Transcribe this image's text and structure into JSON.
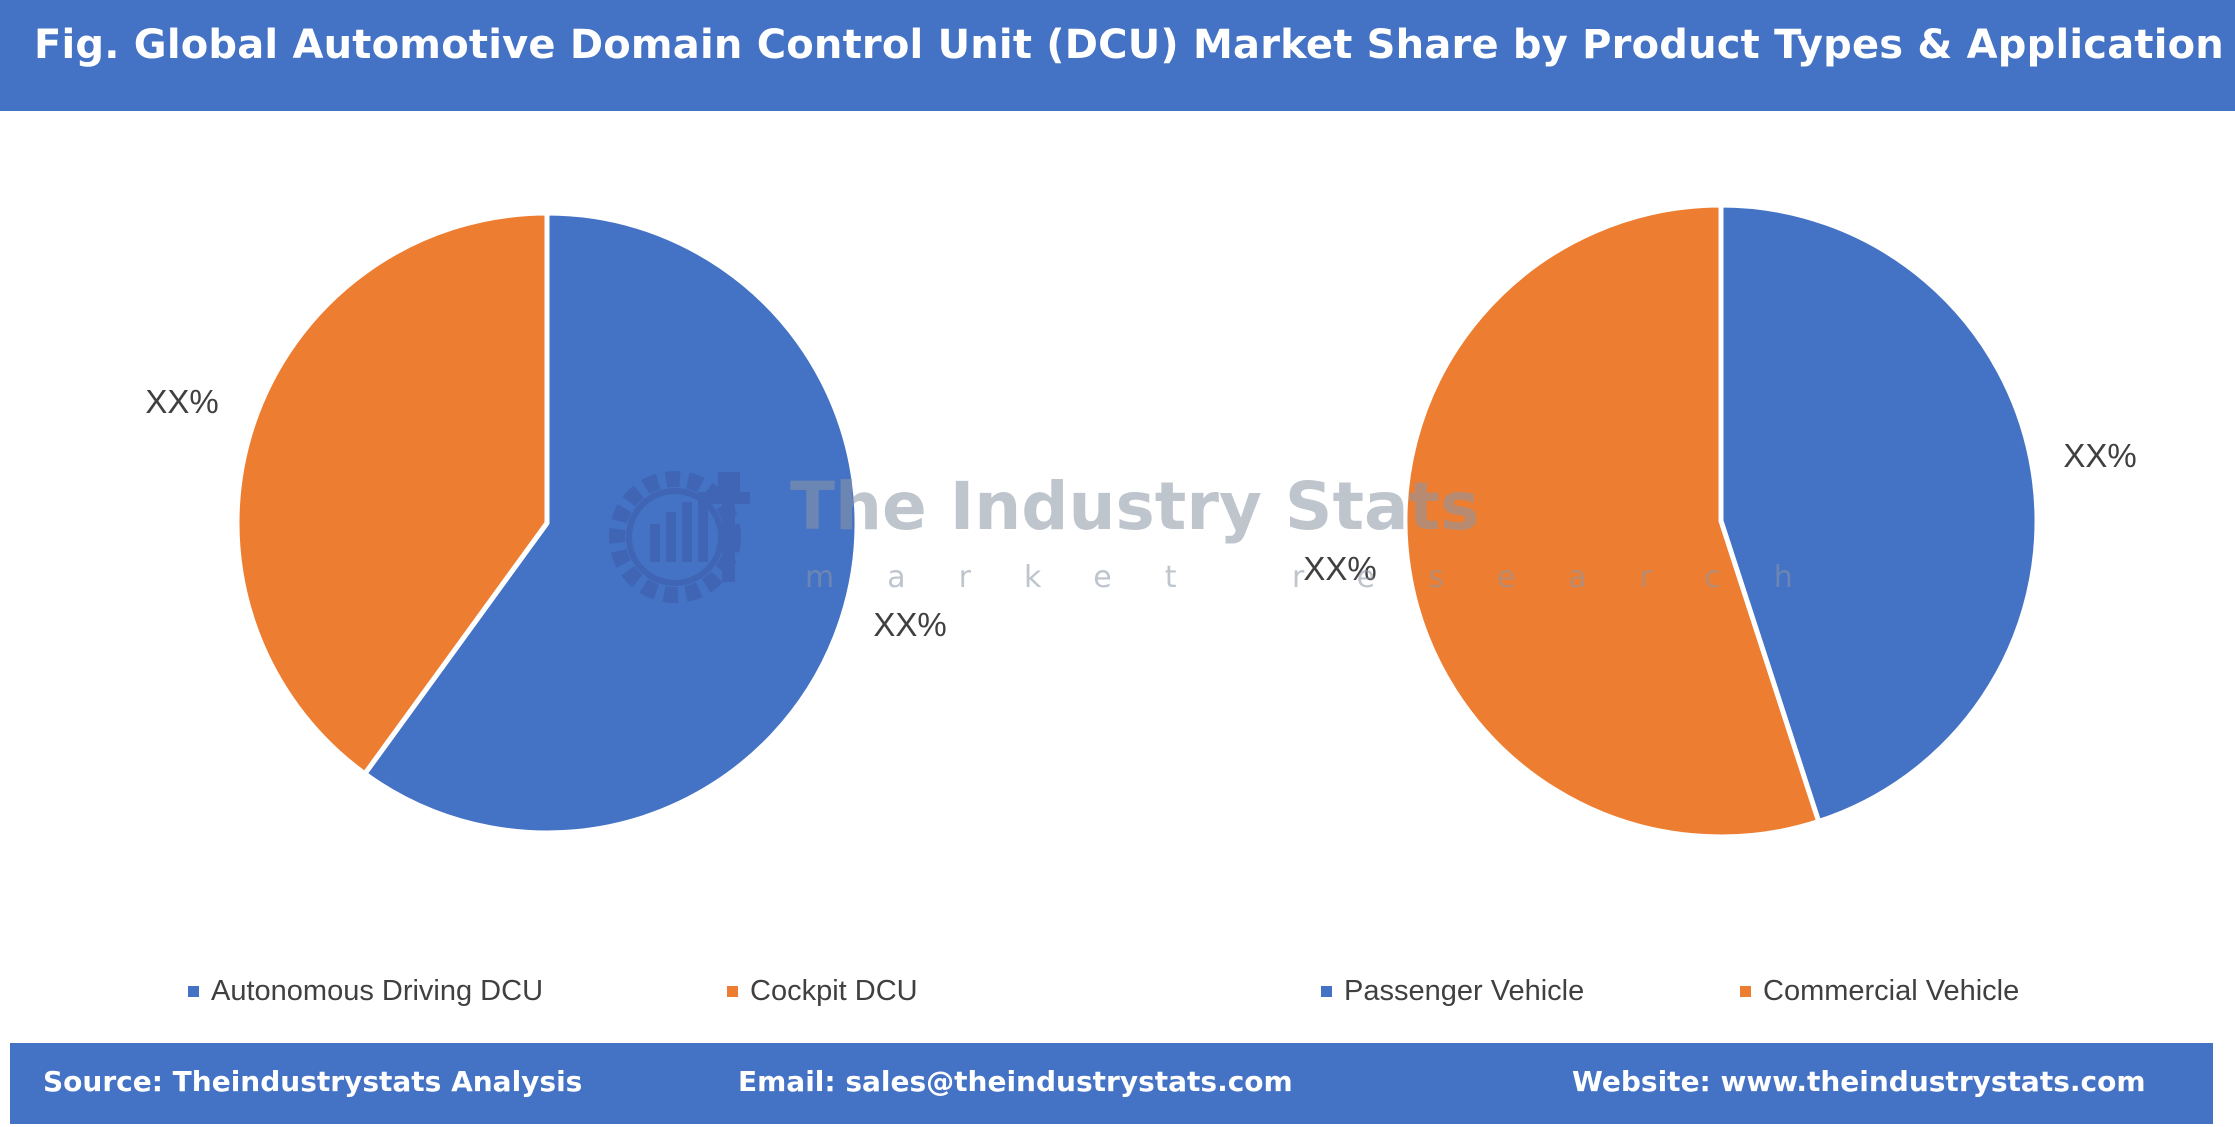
{
  "header": {
    "title": "Fig. Global Automotive Domain Control Unit (DCU) Market Share by Product Types & Application"
  },
  "watermark": {
    "title": "The Industry Stats",
    "subtitle": "market research"
  },
  "chart_data": [
    {
      "type": "pie",
      "categories": [
        "Autonomous Driving DCU",
        "Cockpit DCU"
      ],
      "values": [
        60,
        40
      ],
      "data_labels": [
        "XX%",
        "XX%"
      ],
      "colors": [
        "#4472c4",
        "#ed7d31"
      ],
      "legend": "bottom"
    },
    {
      "type": "pie",
      "categories": [
        "Passenger Vehicle",
        "Commercial Vehicle"
      ],
      "values": [
        45,
        55
      ],
      "data_labels": [
        "XX%",
        "XX%"
      ],
      "colors": [
        "#4472c4",
        "#ed7d31"
      ],
      "legend": "bottom"
    }
  ],
  "footer": {
    "source": "Source: Theindustrystats Analysis",
    "email": "Email: sales@theindustrystats.com",
    "website": "Website: www.theindustrystats.com"
  }
}
